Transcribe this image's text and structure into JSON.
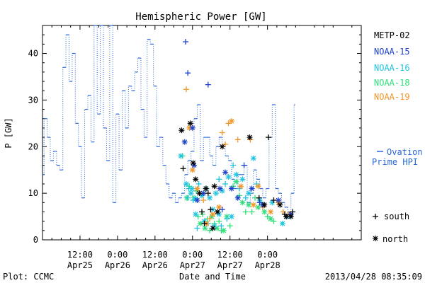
{
  "colors": {
    "metop_02": "#000000",
    "noaa_15": "#1c3fcc",
    "noaa_16": "#20c4e0",
    "noaa_18": "#2ee07a",
    "noaa_19": "#f0962a",
    "ovation": "#2a68d8"
  },
  "footer": {
    "left": "Plot: CCMC",
    "right": "2013/04/28 08:35:09"
  },
  "chart_data": {
    "type": "scatter",
    "title": "Hemispheric Power [GW]",
    "xlabel": "Date and Time",
    "ylabel": "P [GW]",
    "xlim": [
      0,
      102
    ],
    "xlim_note": "hours after 2013-04-25 00:00",
    "ylim": [
      0,
      46
    ],
    "y_ticks": [
      0,
      10,
      20,
      30,
      40
    ],
    "x_ticks": [
      {
        "hours": 12,
        "time": "12:00",
        "date": "Apr25"
      },
      {
        "hours": 24,
        "time": "0:00",
        "date": "Apr26"
      },
      {
        "hours": 36,
        "time": "12:00",
        "date": "Apr26"
      },
      {
        "hours": 48,
        "time": "0:00",
        "date": "Apr27"
      },
      {
        "hours": 60,
        "time": "12:00",
        "date": "Apr27"
      },
      {
        "hours": 72,
        "time": "0:00",
        "date": "Apr28"
      }
    ],
    "legend": {
      "position": "right",
      "entries": [
        {
          "name": "METP-02",
          "series": "metop_02"
        },
        {
          "name": "NOAA-15",
          "series": "noaa_15"
        },
        {
          "name": "NOAA-16",
          "series": "noaa_16"
        },
        {
          "name": "NOAA-18",
          "series": "noaa_18"
        },
        {
          "name": "NOAA-19",
          "series": "noaa_19"
        }
      ],
      "ovation_label": "Ovation Prime HPI",
      "south_label": "south",
      "north_label": "north"
    },
    "ovation_step": [
      [
        0,
        14
      ],
      [
        0.5,
        26
      ],
      [
        1.5,
        22
      ],
      [
        2.5,
        17
      ],
      [
        3.5,
        19
      ],
      [
        4.5,
        16
      ],
      [
        5.5,
        15
      ],
      [
        6.5,
        37
      ],
      [
        7.5,
        44
      ],
      [
        8.5,
        34
      ],
      [
        9.5,
        40
      ],
      [
        10.5,
        25
      ],
      [
        11.5,
        20
      ],
      [
        12.5,
        9
      ],
      [
        13.5,
        28
      ],
      [
        14.5,
        31
      ],
      [
        15.5,
        21
      ],
      [
        16.5,
        46
      ],
      [
        17.5,
        27
      ],
      [
        18.5,
        46
      ],
      [
        19.5,
        24
      ],
      [
        20.5,
        17
      ],
      [
        21.5,
        46
      ],
      [
        22.5,
        8
      ],
      [
        23.5,
        27
      ],
      [
        24.5,
        15
      ],
      [
        25.5,
        32
      ],
      [
        26.5,
        24
      ],
      [
        27.5,
        33
      ],
      [
        28.5,
        32
      ],
      [
        29.5,
        36
      ],
      [
        30.5,
        39
      ],
      [
        31.5,
        28
      ],
      [
        32.5,
        22
      ],
      [
        33.5,
        43
      ],
      [
        34.5,
        42
      ],
      [
        35.5,
        33
      ],
      [
        36.5,
        20
      ],
      [
        37.5,
        22
      ],
      [
        38.5,
        16
      ],
      [
        39.5,
        12
      ],
      [
        40.5,
        9
      ],
      [
        41.5,
        10
      ],
      [
        42.5,
        8
      ],
      [
        43.5,
        9
      ],
      [
        44.5,
        10
      ],
      [
        45.5,
        14
      ],
      [
        46.5,
        17
      ],
      [
        47.5,
        19
      ],
      [
        48.5,
        26
      ],
      [
        49.5,
        29
      ],
      [
        50.5,
        17
      ],
      [
        51.5,
        22
      ],
      [
        52.5,
        22
      ],
      [
        53.5,
        18
      ],
      [
        54.5,
        16
      ],
      [
        55.5,
        20
      ],
      [
        56.5,
        22
      ],
      [
        57.5,
        20
      ],
      [
        58.5,
        18
      ],
      [
        59.5,
        17
      ],
      [
        60.5,
        13
      ],
      [
        61.5,
        11
      ],
      [
        62.5,
        14
      ],
      [
        63.5,
        14
      ],
      [
        64.5,
        16
      ],
      [
        65.5,
        8
      ],
      [
        66.5,
        10
      ],
      [
        67.5,
        15
      ],
      [
        68.5,
        13
      ],
      [
        69.5,
        11
      ],
      [
        70.5,
        9
      ],
      [
        71.5,
        11
      ],
      [
        72.5,
        22
      ],
      [
        73.5,
        29
      ],
      [
        74.5,
        11
      ],
      [
        75.5,
        10
      ],
      [
        76.5,
        8
      ],
      [
        77.5,
        7
      ],
      [
        78.5,
        6
      ],
      [
        79.5,
        10
      ],
      [
        80.5,
        29
      ],
      [
        80.8,
        29
      ]
    ],
    "series": [
      {
        "name": "METP-02",
        "key": "metop_02",
        "points": [
          [
            44.5,
            23.5,
            "n"
          ],
          [
            45.0,
            15.3,
            "s"
          ],
          [
            47.3,
            25.0,
            "n"
          ],
          [
            48.2,
            16.5,
            "n"
          ],
          [
            49.0,
            13.0,
            "n"
          ],
          [
            50.2,
            10.0,
            "n"
          ],
          [
            51.0,
            6.0,
            "s"
          ],
          [
            51.8,
            3.5,
            "s"
          ],
          [
            52.3,
            11.0,
            "n"
          ],
          [
            53.0,
            10.0,
            "s"
          ],
          [
            53.8,
            6.5,
            "s"
          ],
          [
            54.5,
            2.5,
            "n"
          ],
          [
            55.0,
            11.5,
            "n"
          ],
          [
            56.0,
            6.0,
            "n"
          ],
          [
            57.5,
            20.0,
            "n"
          ],
          [
            66.3,
            22.0,
            "n"
          ],
          [
            69.3,
            9.0,
            "s"
          ],
          [
            71.0,
            7.5,
            "n"
          ],
          [
            72.3,
            22.0,
            "s"
          ],
          [
            74.0,
            8.5,
            "s"
          ],
          [
            76.0,
            7.5,
            "n"
          ],
          [
            77.5,
            5.5,
            "s"
          ],
          [
            78.0,
            5.0,
            "n"
          ],
          [
            79.5,
            5.0,
            "n"
          ],
          [
            80.0,
            6.0,
            "s"
          ]
        ]
      },
      {
        "name": "NOAA-15",
        "key": "noaa_15",
        "points": [
          [
            45.5,
            21.0,
            "n"
          ],
          [
            45.8,
            42.5,
            "s"
          ],
          [
            46.5,
            35.8,
            "s"
          ],
          [
            48.0,
            24.0,
            "n"
          ],
          [
            48.5,
            16.0,
            "n"
          ],
          [
            49.5,
            8.5,
            "n"
          ],
          [
            51.5,
            10.0,
            "n"
          ],
          [
            53.0,
            33.3,
            "s"
          ],
          [
            56.8,
            11.0,
            "n"
          ],
          [
            57.5,
            6.5,
            "s"
          ],
          [
            58.5,
            14.5,
            "n"
          ],
          [
            60.5,
            11.0,
            "n"
          ],
          [
            62.5,
            9.0,
            "n"
          ],
          [
            64.5,
            16.0,
            "s"
          ],
          [
            67.0,
            11.0,
            "n"
          ],
          [
            69.5,
            8.0,
            "s"
          ],
          [
            70.5,
            7.5,
            "n"
          ],
          [
            75.5,
            8.5,
            "n"
          ],
          [
            78.0,
            5.0,
            "s"
          ],
          [
            79.5,
            5.5,
            "n"
          ]
        ]
      },
      {
        "name": "NOAA-16",
        "key": "noaa_16",
        "points": [
          [
            44.3,
            18.0,
            "n"
          ],
          [
            46.0,
            12.0,
            "n"
          ],
          [
            46.8,
            11.0,
            "s"
          ],
          [
            47.5,
            10.0,
            "n"
          ],
          [
            48.2,
            8.5,
            "s"
          ],
          [
            49.0,
            8.8,
            "n"
          ],
          [
            50.0,
            12.0,
            "s"
          ],
          [
            51.0,
            9.5,
            "n"
          ],
          [
            52.5,
            11.0,
            "s"
          ],
          [
            53.5,
            9.0,
            "n"
          ],
          [
            54.5,
            6.5,
            "n"
          ],
          [
            55.5,
            10.0,
            "n"
          ],
          [
            56.5,
            13.0,
            "s"
          ],
          [
            57.5,
            10.5,
            "n"
          ],
          [
            58.5,
            12.0,
            "s"
          ],
          [
            59.5,
            13.5,
            "n"
          ],
          [
            61.0,
            16.0,
            "s"
          ],
          [
            62.0,
            14.0,
            "n"
          ],
          [
            63.0,
            11.0,
            "s"
          ],
          [
            64.0,
            13.0,
            "n"
          ],
          [
            65.0,
            9.0,
            "s"
          ],
          [
            66.0,
            10.0,
            "n"
          ],
          [
            67.5,
            17.5,
            "n"
          ],
          [
            68.5,
            12.0,
            "s"
          ],
          [
            69.5,
            8.5,
            "n"
          ],
          [
            70.5,
            7.5,
            "s"
          ],
          [
            73.5,
            8.0,
            "n"
          ],
          [
            76.8,
            3.5,
            "n"
          ],
          [
            78.5,
            5.0,
            "n"
          ],
          [
            49.5,
            2.5,
            "s"
          ],
          [
            51.8,
            4.0,
            "n"
          ],
          [
            53.0,
            3.5,
            "s"
          ],
          [
            55.0,
            3.0,
            "n"
          ],
          [
            56.5,
            5.5,
            "n"
          ],
          [
            57.2,
            3.0,
            "s"
          ],
          [
            59.0,
            4.5,
            "s"
          ],
          [
            60.5,
            5.0,
            "n"
          ],
          [
            46.5,
            9.0,
            "s"
          ],
          [
            47.8,
            11.0,
            "n"
          ],
          [
            49.0,
            5.5,
            "n"
          ]
        ]
      },
      {
        "name": "NOAA-18",
        "key": "noaa_18",
        "points": [
          [
            44.8,
            18.0,
            "s"
          ],
          [
            46.2,
            9.0,
            "n"
          ],
          [
            47.0,
            11.5,
            "s"
          ],
          [
            48.5,
            9.0,
            "n"
          ],
          [
            49.2,
            10.5,
            "s"
          ],
          [
            49.8,
            5.0,
            "s"
          ],
          [
            50.5,
            3.5,
            "n"
          ],
          [
            51.2,
            5.5,
            "s"
          ],
          [
            52.0,
            2.5,
            "n"
          ],
          [
            52.8,
            4.5,
            "s"
          ],
          [
            53.5,
            2.0,
            "s"
          ],
          [
            54.2,
            5.0,
            "n"
          ],
          [
            55.0,
            3.5,
            "s"
          ],
          [
            55.8,
            2.5,
            "n"
          ],
          [
            56.5,
            4.0,
            "s"
          ],
          [
            57.2,
            2.0,
            "s"
          ],
          [
            58.0,
            2.0,
            "n"
          ],
          [
            59.0,
            5.0,
            "n"
          ],
          [
            60.0,
            3.0,
            "s"
          ],
          [
            61.0,
            11.5,
            "s"
          ],
          [
            62.0,
            12.5,
            "n"
          ],
          [
            63.0,
            9.5,
            "s"
          ],
          [
            64.0,
            8.0,
            "n"
          ],
          [
            65.0,
            6.0,
            "s"
          ],
          [
            66.0,
            7.5,
            "n"
          ],
          [
            67.0,
            6.0,
            "s"
          ],
          [
            68.0,
            9.0,
            "s"
          ],
          [
            69.0,
            7.0,
            "n"
          ],
          [
            70.0,
            8.0,
            "s"
          ],
          [
            71.0,
            6.0,
            "n"
          ],
          [
            72.0,
            5.0,
            "s"
          ],
          [
            73.0,
            4.5,
            "n"
          ],
          [
            74.0,
            4.0,
            "s"
          ]
        ]
      },
      {
        "name": "NOAA-19",
        "key": "noaa_19",
        "points": [
          [
            46.0,
            32.3,
            "s"
          ],
          [
            47.0,
            24.0,
            "n"
          ],
          [
            48.0,
            15.0,
            "n"
          ],
          [
            49.5,
            11.0,
            "n"
          ],
          [
            51.5,
            8.5,
            "s"
          ],
          [
            52.5,
            3.5,
            "n"
          ],
          [
            53.5,
            4.5,
            "s"
          ],
          [
            54.5,
            5.5,
            "n"
          ],
          [
            56.5,
            7.0,
            "n"
          ],
          [
            57.5,
            23.0,
            "s"
          ],
          [
            58.5,
            20.5,
            "s"
          ],
          [
            59.5,
            25.0,
            "s"
          ],
          [
            60.5,
            25.5,
            "n"
          ],
          [
            62.5,
            21.5,
            "s"
          ],
          [
            63.5,
            11.5,
            "n"
          ],
          [
            66.5,
            21.5,
            "s"
          ],
          [
            67.5,
            7.5,
            "n"
          ],
          [
            69.0,
            11.5,
            "n"
          ],
          [
            70.5,
            7.0,
            "s"
          ],
          [
            73.0,
            6.0,
            "n"
          ],
          [
            75.5,
            8.0,
            "n"
          ],
          [
            77.0,
            6.0,
            "s"
          ],
          [
            79.0,
            5.5,
            "n"
          ]
        ]
      }
    ]
  }
}
